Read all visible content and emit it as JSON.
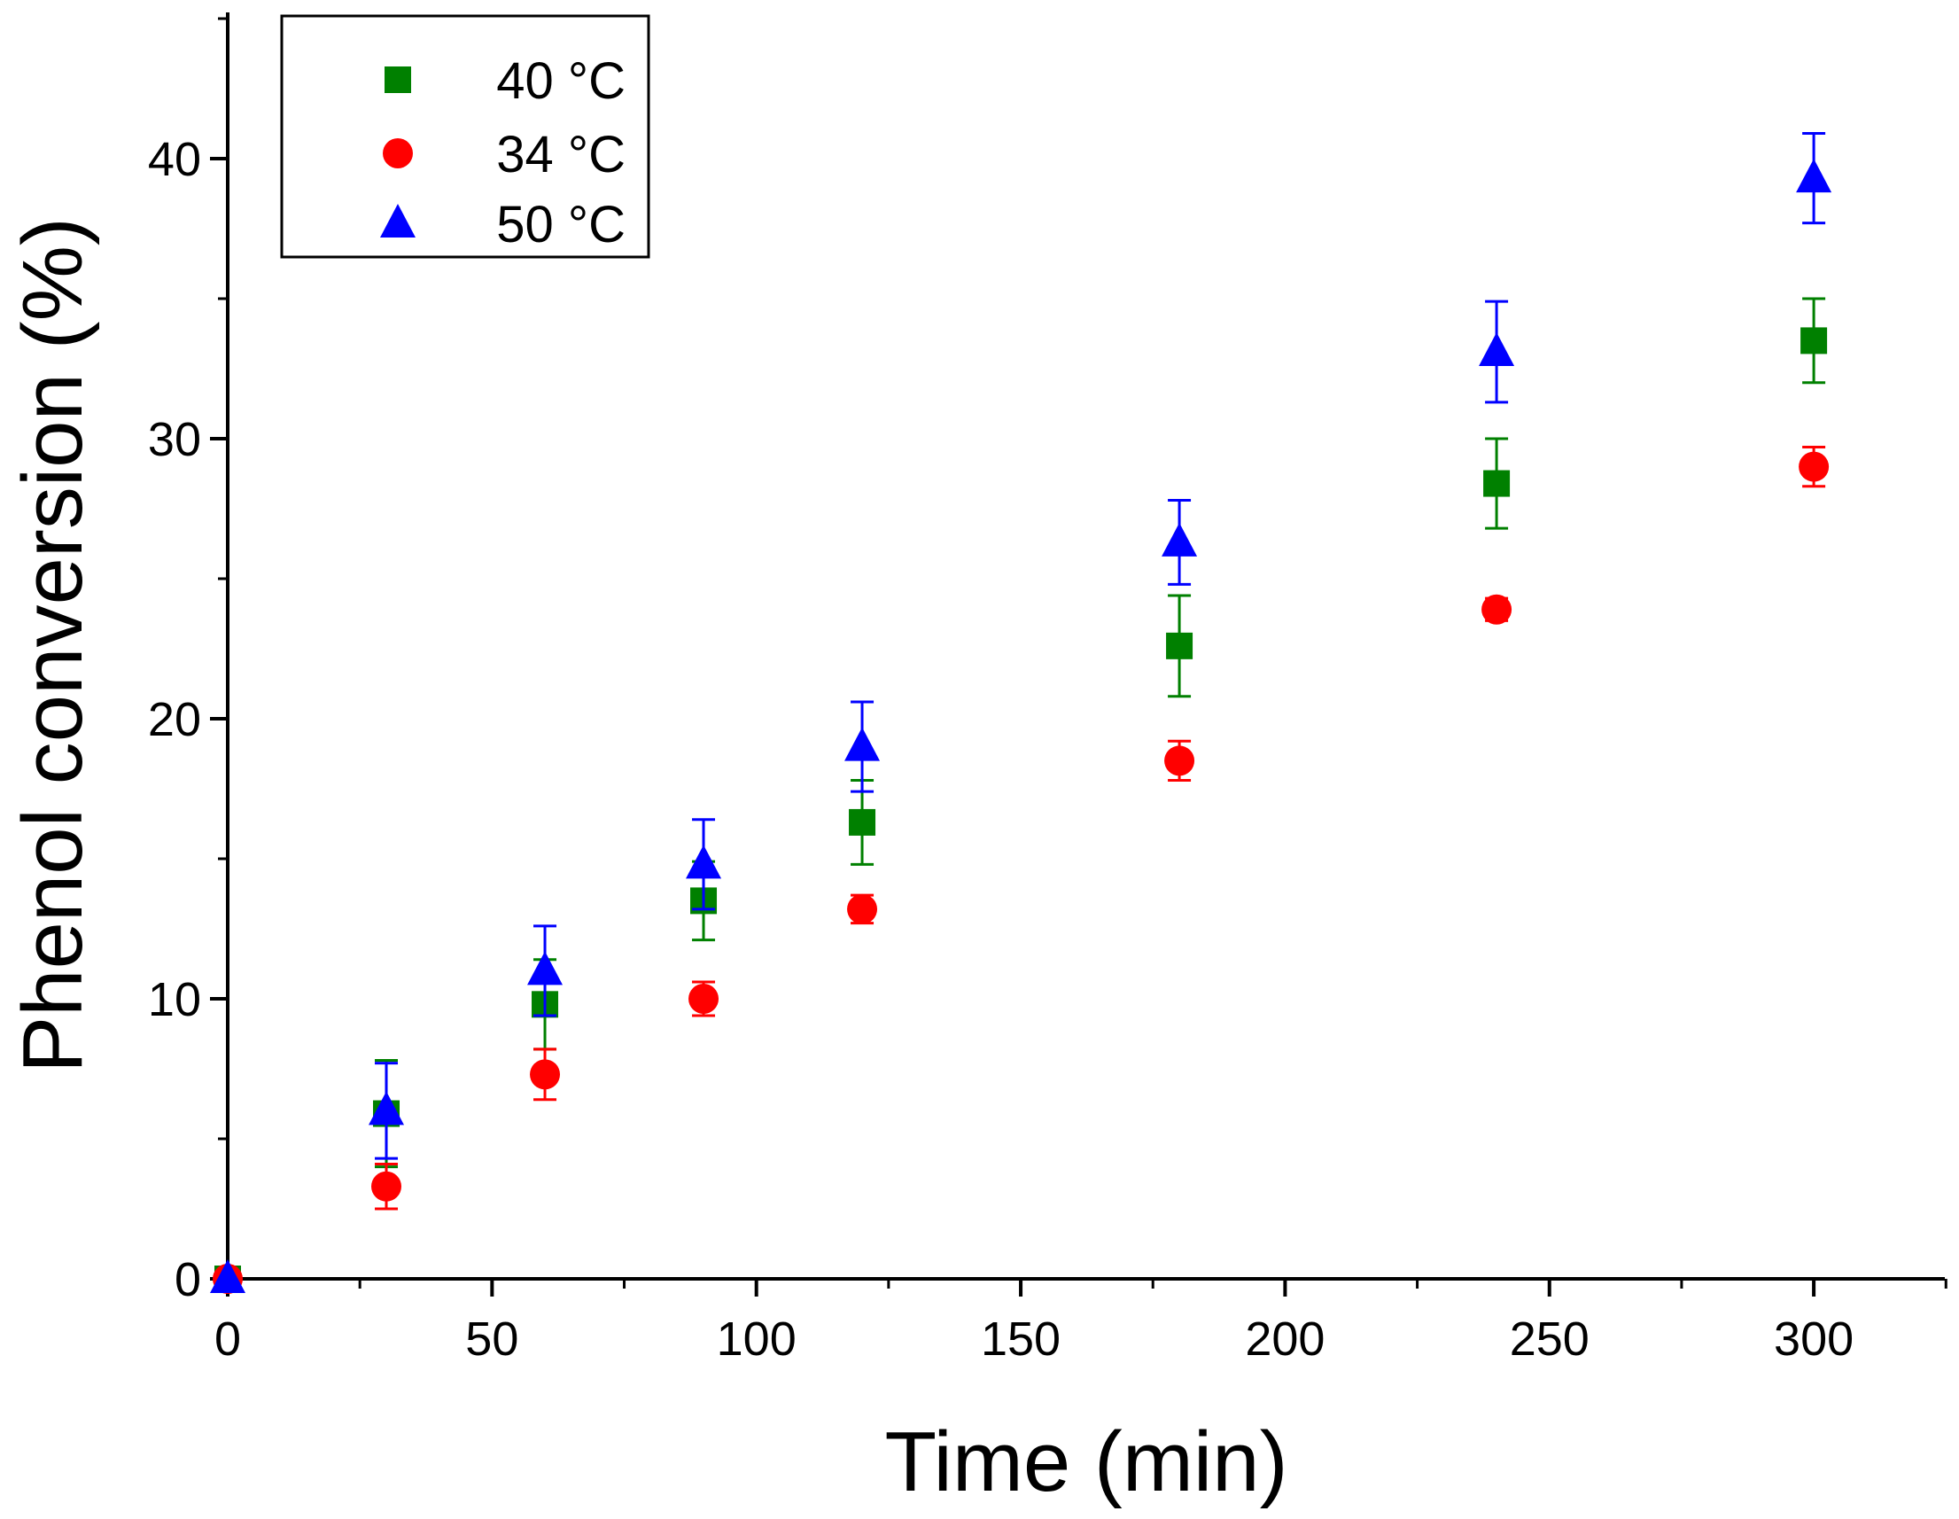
{
  "chart_data": {
    "type": "scatter",
    "title": "",
    "xlabel": "Time (min)",
    "ylabel": "Phenol conversion (%)",
    "xlim": [
      0,
      325
    ],
    "ylim": [
      0,
      45
    ],
    "x_ticks": [
      0,
      50,
      100,
      150,
      200,
      250,
      300
    ],
    "y_ticks": [
      0,
      10,
      20,
      30,
      40
    ],
    "x_tick_labels": [
      "0",
      "50",
      "100",
      "150",
      "200",
      "250",
      "300"
    ],
    "y_tick_labels": [
      "0",
      "10",
      "20",
      "30",
      "40"
    ],
    "x_minor_ticks": [
      25,
      75,
      125,
      175,
      225,
      275,
      325
    ],
    "y_minor_ticks": [
      5,
      15,
      25,
      35,
      45
    ],
    "grid": false,
    "legend_position": "top-left",
    "series": [
      {
        "name": "40 °C",
        "marker": "square",
        "color": "#008000",
        "x": [
          0,
          30,
          60,
          90,
          120,
          180,
          240,
          300
        ],
        "y": [
          0,
          5.9,
          9.8,
          13.5,
          16.3,
          22.6,
          28.4,
          33.5
        ],
        "err": [
          0,
          1.9,
          1.6,
          1.4,
          1.5,
          1.8,
          1.6,
          1.5
        ]
      },
      {
        "name": "34 °C",
        "marker": "circle",
        "color": "#ff0000",
        "x": [
          0,
          30,
          60,
          90,
          120,
          180,
          240,
          300
        ],
        "y": [
          0,
          3.3,
          7.3,
          10.0,
          13.2,
          18.5,
          23.9,
          29.0
        ],
        "err": [
          0,
          0.8,
          0.9,
          0.6,
          0.5,
          0.7,
          0.4,
          0.7
        ]
      },
      {
        "name": "50 °C",
        "marker": "triangle",
        "color": "#0000ff",
        "x": [
          0,
          30,
          60,
          90,
          120,
          180,
          240,
          300
        ],
        "y": [
          0,
          6.0,
          11.0,
          14.8,
          19.0,
          26.3,
          33.1,
          39.3
        ],
        "err": [
          0,
          1.7,
          1.6,
          1.6,
          1.6,
          1.5,
          1.8,
          1.6
        ]
      }
    ]
  }
}
